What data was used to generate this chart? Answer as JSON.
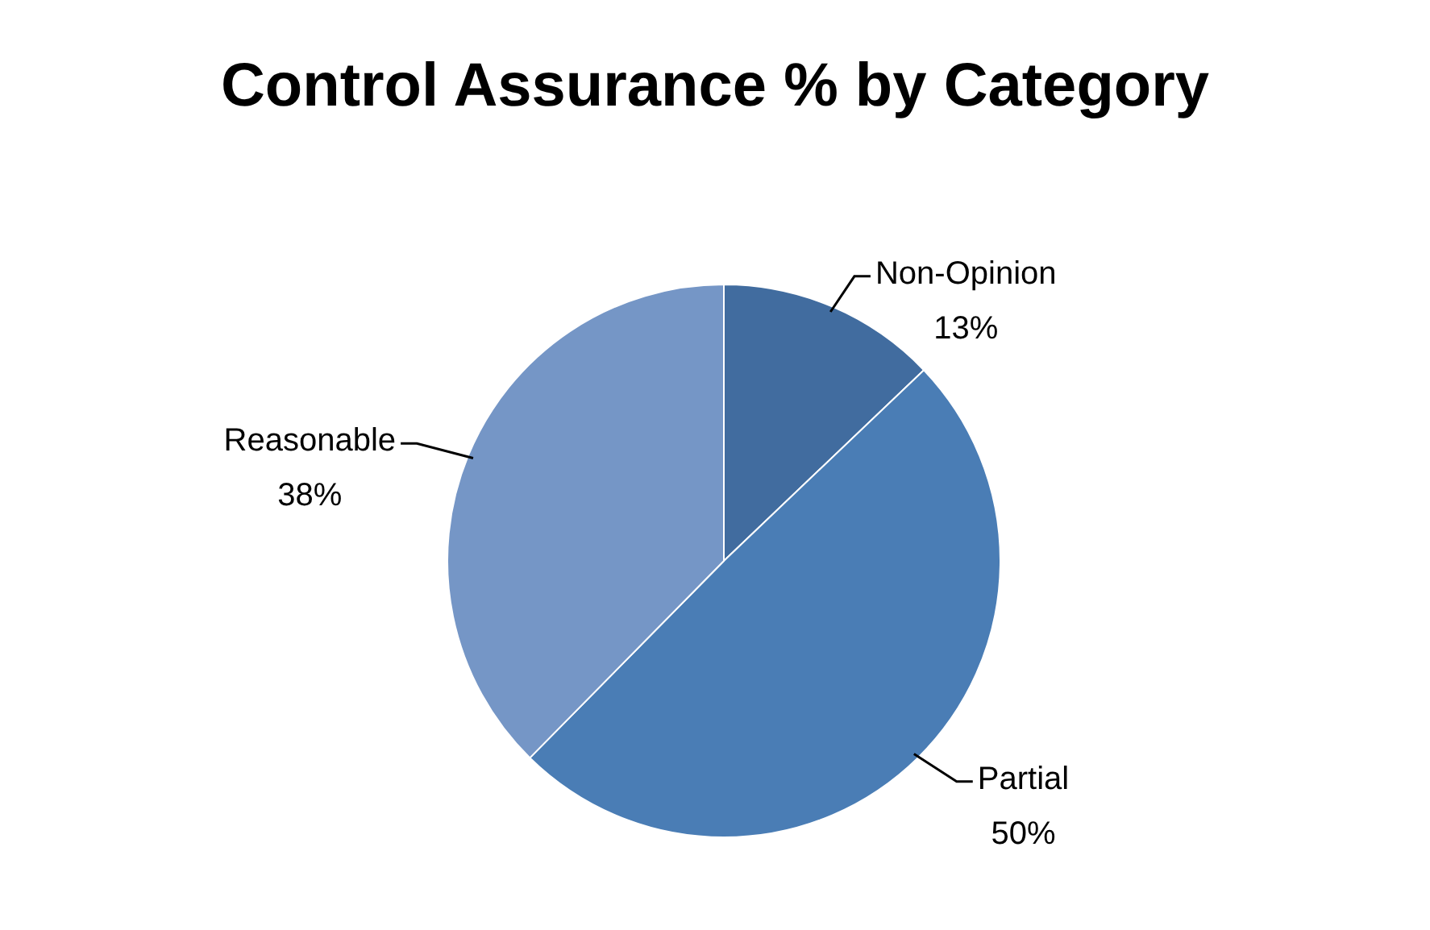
{
  "chart_data": {
    "type": "pie",
    "title": "Control Assurance % by Category",
    "categories": [
      "Non-Opinion",
      "Partial",
      "Reasonable"
    ],
    "values": [
      13,
      50,
      38
    ],
    "colors": [
      "#416c9f",
      "#4a7db5",
      "#7596c6"
    ],
    "value_labels": [
      "13%",
      "50%",
      "38%"
    ],
    "legend": false
  }
}
